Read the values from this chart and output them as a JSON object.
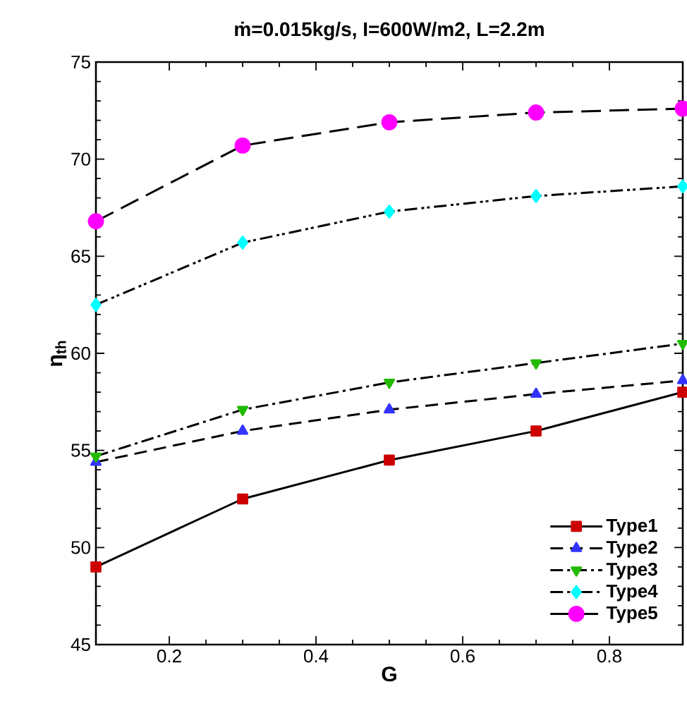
{
  "chart_data": {
    "type": "line",
    "title": "ṁ=0.015kg/s, I=600W/m2, L=2.2m",
    "xlabel": "G",
    "ylabel": "η$_{th}$",
    "x": [
      0.1,
      0.3,
      0.5,
      0.7,
      0.9
    ],
    "series": [
      {
        "name": "Type1",
        "color": "#cc0000",
        "marker": "square",
        "line_style": "solid",
        "values": [
          49,
          52.5,
          54.5,
          56,
          58
        ]
      },
      {
        "name": "Type2",
        "color": "#3333ff",
        "marker": "triangle",
        "line_style": "dashed",
        "values": [
          54.4,
          56,
          57.1,
          57.9,
          58.6
        ]
      },
      {
        "name": "Type3",
        "color": "#22bb00",
        "marker": "triangle-down",
        "line_style": "dashdot",
        "values": [
          54.7,
          57.1,
          58.5,
          59.5,
          60.5
        ]
      },
      {
        "name": "Type4",
        "color": "#00ffff",
        "marker": "diamond",
        "line_style": "dashdotdot",
        "values": [
          62.5,
          65.7,
          67.3,
          68.1,
          68.6
        ]
      },
      {
        "name": "Type5",
        "color": "#ff00ff",
        "marker": "circle",
        "line_style": "longdash",
        "values": [
          66.8,
          70.7,
          71.9,
          72.4,
          72.6
        ]
      }
    ],
    "xlim": [
      0.1,
      0.9
    ],
    "xticks": [
      0.2,
      0.4,
      0.6,
      0.8
    ],
    "ylim": [
      45,
      75
    ],
    "yticks": [
      45,
      50,
      55,
      60,
      65,
      70,
      75
    ],
    "grid": false,
    "legend": "bottom right"
  }
}
